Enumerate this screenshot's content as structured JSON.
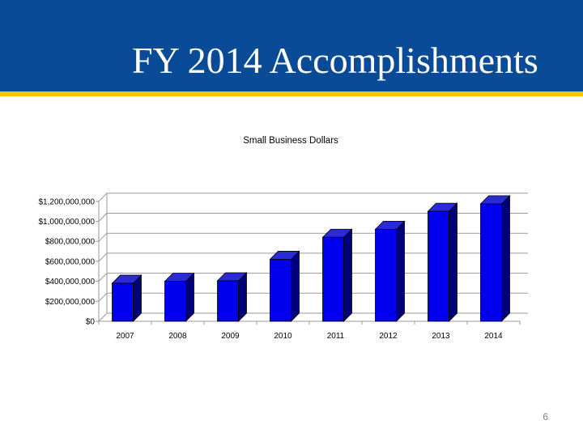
{
  "slide": {
    "title": "FY 2014 Accomplishments",
    "page_number": "6"
  },
  "colors": {
    "banner": "#0a4b97",
    "stripe": "#f5c500",
    "bar_front": "#0000ee",
    "bar_side": "#00007a",
    "bar_top": "#2a2ad8"
  },
  "chart_data": {
    "type": "bar",
    "title": "Small Business Dollars",
    "categories": [
      "2007",
      "2008",
      "2009",
      "2010",
      "2011",
      "2012",
      "2013",
      "2014"
    ],
    "values": [
      380000000,
      400000000,
      405000000,
      620000000,
      840000000,
      920000000,
      1100000000,
      1175000000
    ],
    "y_ticks": [
      "$0",
      "$200,000,000",
      "$400,000,000",
      "$600,000,000",
      "$800,000,000",
      "$1,000,000,000",
      "$1,200,000,000"
    ],
    "ylim": [
      0,
      1200000000
    ],
    "xlabel": "",
    "ylabel": "",
    "grid": true,
    "style": "3d-bar"
  }
}
